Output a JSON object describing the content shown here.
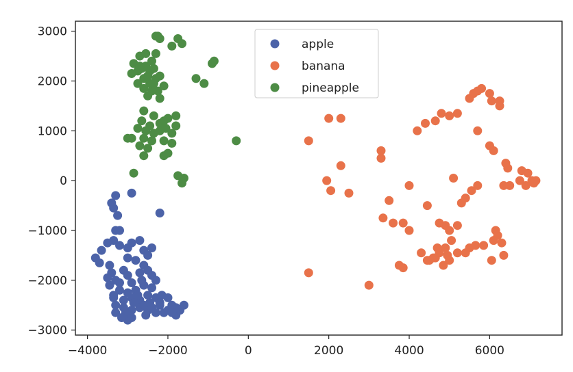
{
  "chart_data": {
    "type": "scatter",
    "title": "",
    "xlabel": "",
    "ylabel": "",
    "xlim": [
      -4300,
      7800
    ],
    "ylim": [
      -3100,
      3200
    ],
    "grid": false,
    "legend_position": "top-center",
    "x_ticks": [
      -4000,
      -2000,
      0,
      2000,
      4000,
      6000
    ],
    "x_tick_labels": [
      "−4000",
      "−2000",
      "0",
      "2000",
      "4000",
      "6000"
    ],
    "y_ticks": [
      3000,
      2000,
      1000,
      0,
      -1000,
      -2000,
      -3000
    ],
    "y_tick_labels": [
      "3000",
      "2000",
      "1000",
      "0",
      "−1000",
      "−2000",
      "−3000"
    ],
    "series": [
      {
        "name": "apple",
        "color": "#4c63a8",
        "points": [
          [
            -3300,
            -300
          ],
          [
            -3400,
            -450
          ],
          [
            -3350,
            -550
          ],
          [
            -3250,
            -700
          ],
          [
            -2900,
            -250
          ],
          [
            -2200,
            -650
          ],
          [
            -3300,
            -1000
          ],
          [
            -3200,
            -1000
          ],
          [
            -3500,
            -1250
          ],
          [
            -3650,
            -1400
          ],
          [
            -3800,
            -1550
          ],
          [
            -3700,
            -1650
          ],
          [
            -3350,
            -1200
          ],
          [
            -3200,
            -1300
          ],
          [
            -3000,
            -1350
          ],
          [
            -2900,
            -1250
          ],
          [
            -2700,
            -1200
          ],
          [
            -2600,
            -1400
          ],
          [
            -2400,
            -1350
          ],
          [
            -2500,
            -1500
          ],
          [
            -2800,
            -1600
          ],
          [
            -3000,
            -1550
          ],
          [
            -3450,
            -1700
          ],
          [
            -3400,
            -1850
          ],
          [
            -3500,
            -1950
          ],
          [
            -3450,
            -2100
          ],
          [
            -3300,
            -2000
          ],
          [
            -3100,
            -1800
          ],
          [
            -3000,
            -1900
          ],
          [
            -2900,
            -2050
          ],
          [
            -2700,
            -1850
          ],
          [
            -2600,
            -1700
          ],
          [
            -2500,
            -1800
          ],
          [
            -2400,
            -1900
          ],
          [
            -2300,
            -2000
          ],
          [
            -2400,
            -2150
          ],
          [
            -2600,
            -2100
          ],
          [
            -2800,
            -2200
          ],
          [
            -3000,
            -2250
          ],
          [
            -3200,
            -2200
          ],
          [
            -3350,
            -2300
          ],
          [
            -3300,
            -2500
          ],
          [
            -3100,
            -2400
          ],
          [
            -2900,
            -2350
          ],
          [
            -2700,
            -2400
          ],
          [
            -2500,
            -2300
          ],
          [
            -2300,
            -2350
          ],
          [
            -2200,
            -2500
          ],
          [
            -2100,
            -2650
          ],
          [
            -2300,
            -2650
          ],
          [
            -2500,
            -2600
          ],
          [
            -2700,
            -2550
          ],
          [
            -2900,
            -2600
          ],
          [
            -3050,
            -2650
          ],
          [
            -3000,
            -2800
          ],
          [
            -2900,
            -2750
          ],
          [
            -3100,
            -2550
          ],
          [
            -3300,
            -2650
          ],
          [
            -2850,
            -2450
          ],
          [
            -2600,
            -2500
          ],
          [
            -2400,
            -2550
          ],
          [
            -2000,
            -2600
          ],
          [
            -1900,
            -2500
          ],
          [
            -1800,
            -2700
          ],
          [
            -1700,
            -2600
          ],
          [
            -1600,
            -2500
          ],
          [
            -1800,
            -2550
          ],
          [
            -2000,
            -2350
          ],
          [
            -2200,
            -2450
          ],
          [
            -3200,
            -2050
          ],
          [
            -3350,
            -2350
          ],
          [
            -2650,
            -2000
          ],
          [
            -2750,
            -2300
          ],
          [
            -2450,
            -2450
          ],
          [
            -2150,
            -2300
          ],
          [
            -1900,
            -2650
          ],
          [
            -3150,
            -2750
          ],
          [
            -2550,
            -2700
          ]
        ]
      },
      {
        "name": "banana",
        "color": "#e8724a",
        "points": [
          [
            1500,
            800
          ],
          [
            2000,
            1250
          ],
          [
            2300,
            1250
          ],
          [
            2300,
            300
          ],
          [
            1950,
            0
          ],
          [
            2050,
            -200
          ],
          [
            2500,
            -250
          ],
          [
            1500,
            -1850
          ],
          [
            3000,
            -2100
          ],
          [
            3300,
            600
          ],
          [
            3300,
            450
          ],
          [
            3500,
            -400
          ],
          [
            3350,
            -750
          ],
          [
            3600,
            -850
          ],
          [
            3850,
            -850
          ],
          [
            4000,
            -1000
          ],
          [
            4000,
            -100
          ],
          [
            3750,
            -1700
          ],
          [
            3850,
            -1750
          ],
          [
            4200,
            1000
          ],
          [
            4400,
            1150
          ],
          [
            4650,
            1200
          ],
          [
            4800,
            1350
          ],
          [
            5000,
            1300
          ],
          [
            5200,
            1350
          ],
          [
            5500,
            1650
          ],
          [
            5600,
            1750
          ],
          [
            5700,
            1800
          ],
          [
            5800,
            1850
          ],
          [
            6000,
            1750
          ],
          [
            6050,
            1600
          ],
          [
            6250,
            1500
          ],
          [
            6250,
            1600
          ],
          [
            5700,
            1000
          ],
          [
            6000,
            700
          ],
          [
            6100,
            600
          ],
          [
            6400,
            350
          ],
          [
            6450,
            250
          ],
          [
            6800,
            200
          ],
          [
            6950,
            150
          ],
          [
            7050,
            0
          ],
          [
            7150,
            0
          ],
          [
            7100,
            -50
          ],
          [
            6900,
            -100
          ],
          [
            6750,
            0
          ],
          [
            6500,
            -100
          ],
          [
            6350,
            -100
          ],
          [
            5700,
            -100
          ],
          [
            5550,
            -200
          ],
          [
            5400,
            -350
          ],
          [
            5300,
            -450
          ],
          [
            5100,
            50
          ],
          [
            4450,
            -500
          ],
          [
            4750,
            -850
          ],
          [
            4900,
            -900
          ],
          [
            5000,
            -1000
          ],
          [
            5200,
            -900
          ],
          [
            5050,
            -1200
          ],
          [
            4900,
            -1350
          ],
          [
            4750,
            -1450
          ],
          [
            4650,
            -1550
          ],
          [
            4500,
            -1600
          ],
          [
            4300,
            -1450
          ],
          [
            4450,
            -1600
          ],
          [
            4850,
            -1700
          ],
          [
            5000,
            -1600
          ],
          [
            5200,
            -1450
          ],
          [
            5500,
            -1350
          ],
          [
            5650,
            -1300
          ],
          [
            5850,
            -1300
          ],
          [
            6100,
            -1200
          ],
          [
            6150,
            -1000
          ],
          [
            6200,
            -1100
          ],
          [
            6300,
            -1250
          ],
          [
            6350,
            -1500
          ],
          [
            6050,
            -1600
          ],
          [
            4950,
            -1500
          ],
          [
            5400,
            -1450
          ],
          [
            4700,
            -1350
          ],
          [
            4600,
            -1550
          ]
        ]
      },
      {
        "name": "pineapple",
        "color": "#4d8c45",
        "points": [
          [
            -2300,
            2900
          ],
          [
            -2200,
            2850
          ],
          [
            -1750,
            2850
          ],
          [
            -1650,
            2750
          ],
          [
            -1900,
            2700
          ],
          [
            -2700,
            2500
          ],
          [
            -2550,
            2550
          ],
          [
            -2300,
            2550
          ],
          [
            -2850,
            2350
          ],
          [
            -2750,
            2200
          ],
          [
            -2900,
            2150
          ],
          [
            -2650,
            2250
          ],
          [
            -2550,
            2300
          ],
          [
            -2450,
            2200
          ],
          [
            -2350,
            2250
          ],
          [
            -2600,
            2050
          ],
          [
            -2450,
            1950
          ],
          [
            -2300,
            2050
          ],
          [
            -2200,
            2100
          ],
          [
            -2750,
            1950
          ],
          [
            -2600,
            1850
          ],
          [
            -2400,
            1800
          ],
          [
            -2250,
            1800
          ],
          [
            -2100,
            1900
          ],
          [
            -2500,
            1700
          ],
          [
            -2200,
            1650
          ],
          [
            -1300,
            2050
          ],
          [
            -1100,
            1950
          ],
          [
            -900,
            2350
          ],
          [
            -850,
            2400
          ],
          [
            -2600,
            1400
          ],
          [
            -2650,
            1200
          ],
          [
            -2350,
            1300
          ],
          [
            -2200,
            1150
          ],
          [
            -2100,
            1200
          ],
          [
            -1800,
            1300
          ],
          [
            -2450,
            1100
          ],
          [
            -2750,
            1050
          ],
          [
            -2550,
            1000
          ],
          [
            -2350,
            950
          ],
          [
            -2200,
            1000
          ],
          [
            -2050,
            1050
          ],
          [
            -1900,
            950
          ],
          [
            -1800,
            1100
          ],
          [
            -2600,
            850
          ],
          [
            -2400,
            800
          ],
          [
            -2100,
            800
          ],
          [
            -1900,
            750
          ],
          [
            -2700,
            700
          ],
          [
            -2500,
            650
          ],
          [
            -2100,
            500
          ],
          [
            -2600,
            500
          ],
          [
            -2000,
            550
          ],
          [
            -2900,
            850
          ],
          [
            -3000,
            850
          ],
          [
            -2850,
            150
          ],
          [
            -1750,
            100
          ],
          [
            -1600,
            50
          ],
          [
            -1650,
            -50
          ],
          [
            -300,
            800
          ],
          [
            -2250,
            2900
          ],
          [
            -2400,
            2400
          ],
          [
            -2700,
            2300
          ],
          [
            -2500,
            2100
          ],
          [
            -2350,
            1950
          ],
          [
            -2000,
            1250
          ]
        ]
      }
    ]
  }
}
